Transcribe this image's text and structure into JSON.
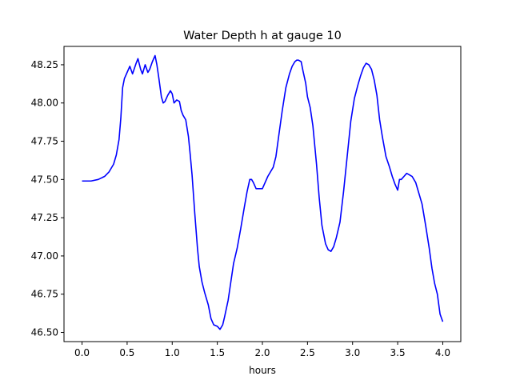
{
  "chart_data": {
    "type": "line",
    "title": "Water Depth h at gauge 10",
    "xlabel": "hours",
    "ylabel": "",
    "xlim": [
      -0.2,
      4.2
    ],
    "ylim": [
      46.44,
      48.37
    ],
    "xticks": [
      0.0,
      0.5,
      1.0,
      1.5,
      2.0,
      2.5,
      3.0,
      3.5,
      4.0
    ],
    "xtick_labels": [
      "0.0",
      "0.5",
      "1.0",
      "1.5",
      "2.0",
      "2.5",
      "3.0",
      "3.5",
      "4.0"
    ],
    "yticks": [
      46.5,
      46.75,
      47.0,
      47.25,
      47.5,
      47.75,
      48.0,
      48.25
    ],
    "ytick_labels": [
      "46.50",
      "46.75",
      "47.00",
      "47.25",
      "47.50",
      "47.75",
      "48.00",
      "48.25"
    ],
    "grid": false,
    "series": [
      {
        "color": "#0000ff",
        "x": [
          0.0,
          0.1,
          0.18,
          0.25,
          0.3,
          0.35,
          0.38,
          0.41,
          0.43,
          0.45,
          0.47,
          0.5,
          0.53,
          0.56,
          0.6,
          0.62,
          0.65,
          0.67,
          0.7,
          0.73,
          0.75,
          0.78,
          0.81,
          0.83,
          0.85,
          0.88,
          0.9,
          0.92,
          0.95,
          0.98,
          1.0,
          1.02,
          1.05,
          1.08,
          1.1,
          1.12,
          1.15,
          1.18,
          1.2,
          1.22,
          1.25,
          1.28,
          1.3,
          1.33,
          1.36,
          1.4,
          1.43,
          1.46,
          1.5,
          1.53,
          1.56,
          1.58,
          1.62,
          1.65,
          1.68,
          1.72,
          1.76,
          1.8,
          1.83,
          1.86,
          1.88,
          1.9,
          1.93,
          1.96,
          2.0,
          2.03,
          2.06,
          2.09,
          2.12,
          2.15,
          2.18,
          2.22,
          2.26,
          2.3,
          2.33,
          2.36,
          2.38,
          2.4,
          2.43,
          2.45,
          2.48,
          2.5,
          2.53,
          2.56,
          2.6,
          2.63,
          2.66,
          2.7,
          2.73,
          2.76,
          2.79,
          2.82,
          2.86,
          2.9,
          2.94,
          2.98,
          3.02,
          3.06,
          3.09,
          3.12,
          3.15,
          3.18,
          3.21,
          3.24,
          3.27,
          3.3,
          3.33,
          3.37,
          3.41,
          3.44,
          3.47,
          3.5,
          3.52,
          3.54,
          3.57,
          3.6,
          3.63,
          3.66,
          3.7,
          3.73,
          3.77,
          3.81,
          3.85,
          3.88,
          3.91,
          3.94,
          3.97,
          4.0
        ],
        "y": [
          47.49,
          47.49,
          47.5,
          47.52,
          47.55,
          47.6,
          47.66,
          47.76,
          47.9,
          48.1,
          48.16,
          48.2,
          48.24,
          48.19,
          48.26,
          48.29,
          48.22,
          48.19,
          48.25,
          48.2,
          48.22,
          48.27,
          48.31,
          48.25,
          48.17,
          48.04,
          48.0,
          48.01,
          48.05,
          48.08,
          48.06,
          48.0,
          48.02,
          48.01,
          47.95,
          47.92,
          47.89,
          47.78,
          47.66,
          47.53,
          47.28,
          47.05,
          46.93,
          46.83,
          46.76,
          46.68,
          46.59,
          46.55,
          46.54,
          46.52,
          46.55,
          46.6,
          46.71,
          46.83,
          46.95,
          47.05,
          47.18,
          47.32,
          47.42,
          47.5,
          47.5,
          47.48,
          47.44,
          47.44,
          47.44,
          47.48,
          47.52,
          47.55,
          47.58,
          47.65,
          47.78,
          47.95,
          48.1,
          48.19,
          48.24,
          48.27,
          48.28,
          48.28,
          48.27,
          48.21,
          48.13,
          48.04,
          47.97,
          47.85,
          47.6,
          47.38,
          47.2,
          47.08,
          47.04,
          47.03,
          47.06,
          47.12,
          47.22,
          47.42,
          47.65,
          47.88,
          48.03,
          48.12,
          48.18,
          48.23,
          48.26,
          48.25,
          48.22,
          48.15,
          48.05,
          47.89,
          47.78,
          47.65,
          47.58,
          47.52,
          47.47,
          47.43,
          47.5,
          47.5,
          47.52,
          47.54,
          47.53,
          47.52,
          47.48,
          47.42,
          47.34,
          47.2,
          47.05,
          46.92,
          46.82,
          46.75,
          46.62,
          46.57
        ]
      }
    ]
  }
}
